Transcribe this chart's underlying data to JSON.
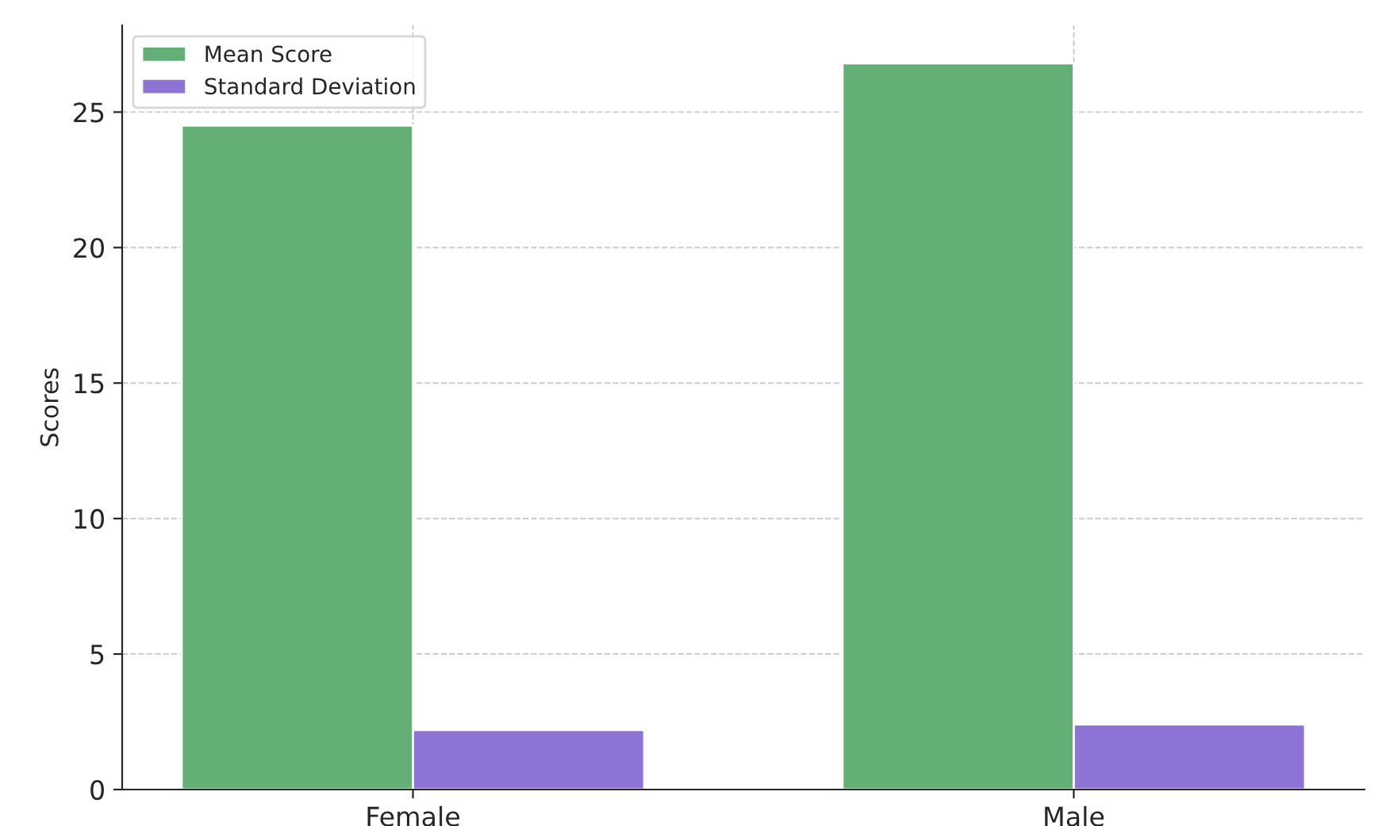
{
  "chart_data": {
    "type": "bar",
    "ylabel": "Scores",
    "categories": [
      "Female",
      "Male"
    ],
    "series": [
      {
        "name": "Mean Score",
        "color": "#63af75",
        "values": [
          24.5,
          26.8
        ]
      },
      {
        "name": "Standard Deviation",
        "color": "#8c73d4",
        "values": [
          2.2,
          2.4
        ]
      }
    ],
    "ylim": [
      0,
      28.2
    ],
    "yticks": [
      0,
      5,
      10,
      15,
      20,
      25
    ],
    "grid": true,
    "legend": "top left"
  }
}
